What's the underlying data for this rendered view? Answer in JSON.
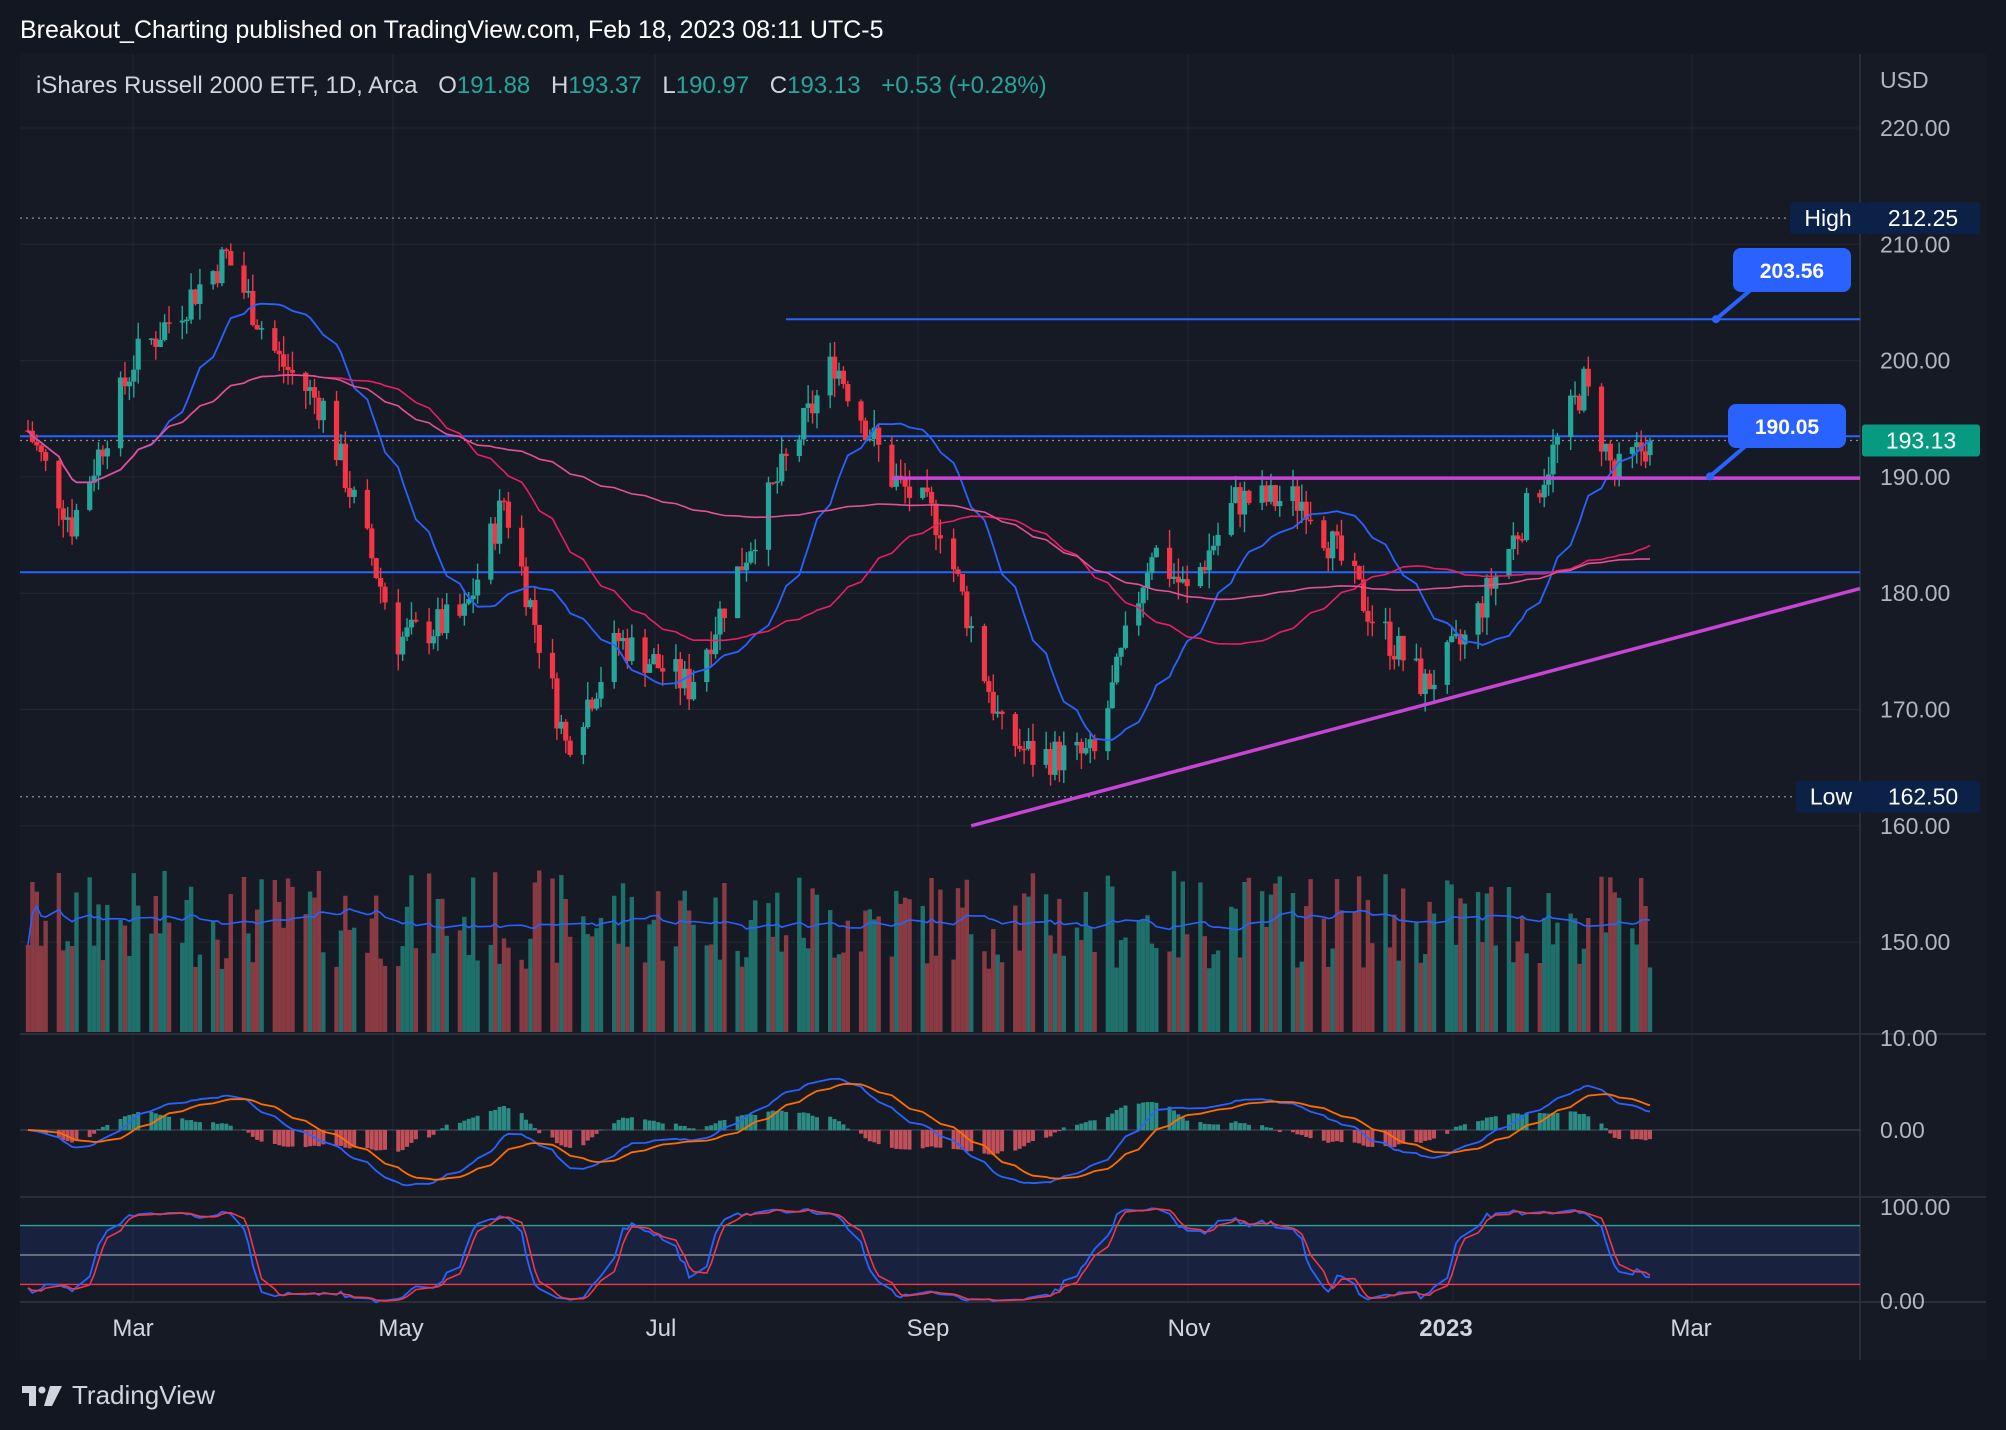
{
  "publisher_text": "Breakout_Charting published on TradingView.com, Feb 18, 2023 08:11 UTC-5",
  "legend": {
    "symbol": "iShares Russell 2000 ETF, 1D, Arca",
    "open_label": "O",
    "open": "191.88",
    "high_label": "H",
    "high": "193.37",
    "low_label": "L",
    "low": "190.97",
    "close_label": "C",
    "close": "193.13",
    "change": "+0.53 (+0.28%)"
  },
  "axis": {
    "currency": "USD",
    "price_ticks": [
      "220.00",
      "210.00",
      "200.00",
      "190.00",
      "180.00",
      "170.00",
      "160.00",
      "150.00"
    ],
    "macd_ticks": [
      "10.00",
      "0.00"
    ],
    "stoch_ticks": [
      "100.00",
      "0.00"
    ],
    "months": [
      "Mar",
      "May",
      "Jul",
      "Sep",
      "Nov",
      "2023",
      "Mar"
    ]
  },
  "markers": {
    "high_label": "High",
    "high_value": "212.25",
    "low_label": "Low",
    "low_value": "162.50",
    "last_price": "193.13",
    "callout_upper": "203.56",
    "callout_lower": "190.05"
  },
  "colors": {
    "background": "#161a25",
    "up": "#26a69a",
    "down": "#f23645",
    "ema_fast": "#2962ff",
    "ema_mid": "#e91e63",
    "ema_slow": "#e05297",
    "trendline": "#c844d6",
    "hline": "#2962ff",
    "callout": "#2962ff"
  },
  "footer": {
    "brand": "TradingView"
  },
  "chart_data": {
    "type": "line",
    "series_kind": "candlestick",
    "x_range": [
      "2022-02-14",
      "2023-02-17"
    ],
    "ylim": [
      157,
      226
    ],
    "yaxis_unit": "USD",
    "high": 212.25,
    "low": 162.5,
    "last": 193.13,
    "horizontal_levels": [
      203.56,
      193.5,
      181.8
    ],
    "callouts": [
      203.56,
      190.05
    ],
    "resistance_line": {
      "from": [
        "2022-08-29",
        189.9
      ],
      "to": [
        "2023-03-31",
        189.9
      ]
    },
    "support_line": {
      "from": [
        "2022-09-16",
        160.0
      ],
      "to": [
        "2023-03-31",
        180.4
      ]
    },
    "price_path": [
      [
        "2022-02-14",
        194
      ],
      [
        "2022-02-24",
        186
      ],
      [
        "2022-03-10",
        200
      ],
      [
        "2022-03-31",
        209
      ],
      [
        "2022-04-12",
        200
      ],
      [
        "2022-04-22",
        196
      ],
      [
        "2022-05-09",
        176
      ],
      [
        "2022-05-24",
        178
      ],
      [
        "2022-06-02",
        188
      ],
      [
        "2022-06-16",
        167
      ],
      [
        "2022-06-28",
        176
      ],
      [
        "2022-07-14",
        172
      ],
      [
        "2022-08-01",
        188
      ],
      [
        "2022-08-16",
        200
      ],
      [
        "2022-08-29",
        190
      ],
      [
        "2022-09-09",
        186
      ],
      [
        "2022-09-23",
        168
      ],
      [
        "2022-09-30",
        166
      ],
      [
        "2022-10-14",
        166
      ],
      [
        "2022-10-27",
        184
      ],
      [
        "2022-11-04",
        180
      ],
      [
        "2022-11-15",
        188
      ],
      [
        "2022-12-01",
        188
      ],
      [
        "2022-12-16",
        178
      ],
      [
        "2022-12-28",
        172
      ],
      [
        "2023-01-06",
        176
      ],
      [
        "2023-01-20",
        187
      ],
      [
        "2023-02-02",
        198
      ],
      [
        "2023-02-09",
        190
      ],
      [
        "2023-02-17",
        193.13
      ]
    ],
    "macd_ylim": [
      -8,
      10
    ],
    "stoch_ylim": [
      0,
      100
    ],
    "stoch_bands": [
      80,
      50,
      20
    ]
  }
}
